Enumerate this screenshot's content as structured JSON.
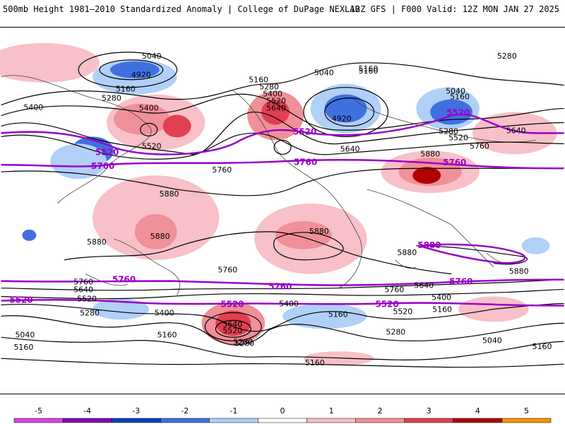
{
  "header": {
    "left_title": "500mb Height 1981–2010 Standardized Anomaly | College of DuPage NEXLAB",
    "right_title": "12Z GFS | F000 Valid: 12Z MON JAN 27 2025"
  },
  "map": {
    "contour_labels": {
      "black": [
        "5040",
        "4920",
        "5280",
        "5160",
        "5400",
        "5160",
        "5280",
        "5400",
        "5520",
        "5640",
        "5400",
        "5520",
        "5160",
        "5040",
        "5160",
        "5280",
        "5520",
        "5640",
        "5640",
        "5760",
        "4920",
        "5280",
        "5160",
        "5040",
        "5760",
        "5880",
        "5880",
        "5880",
        "5880",
        "5880",
        "5880",
        "5760",
        "5640",
        "5760",
        "5520",
        "5280",
        "5160",
        "5040",
        "5400",
        "5280",
        "5640",
        "5520",
        "5400",
        "5160",
        "5280",
        "5160",
        "5400",
        "5520",
        "5640",
        "5760",
        "5880",
        "5280",
        "5160",
        "5040",
        "5160",
        "5160"
      ],
      "highlight": [
        "5520",
        "5760",
        "5520",
        "5760",
        "5520",
        "5760",
        "5520",
        "5880",
        "5760",
        "5760",
        "5760",
        "5520",
        "5520",
        "5520"
      ]
    }
  },
  "colorbar": {
    "ticks": [
      "-5",
      "-4",
      "-3",
      "-2",
      "-1",
      "0",
      "1",
      "2",
      "3",
      "4",
      "5"
    ],
    "colors": [
      "#e040e0",
      "#8000c0",
      "#0040c0",
      "#4070e0",
      "#b0d0f8",
      "#ffffff",
      "#f8c0c8",
      "#f09098",
      "#e04050",
      "#b00000",
      "#ff9000"
    ]
  }
}
